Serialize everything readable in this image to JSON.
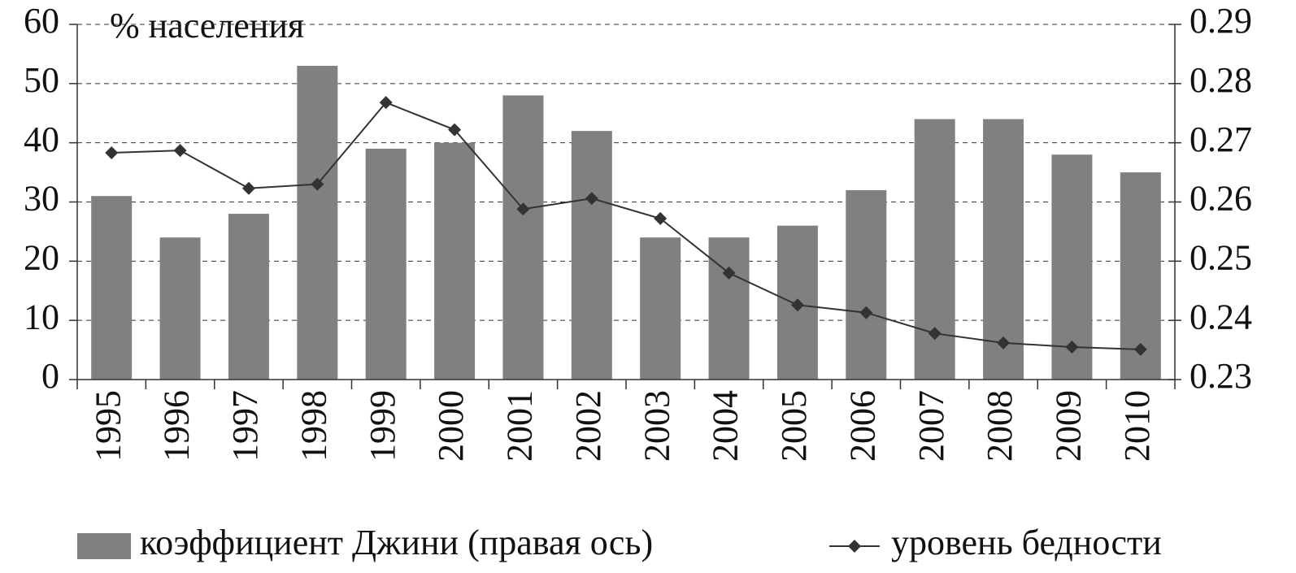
{
  "chart_data": {
    "type": "bar-line",
    "annotation": "% населения",
    "categories": [
      "1995",
      "1996",
      "1997",
      "1998",
      "1999",
      "2000",
      "2001",
      "2002",
      "2003",
      "2004",
      "2005",
      "2006",
      "2007",
      "2008",
      "2009",
      "2010"
    ],
    "series": [
      {
        "name": "коэффициент Джини (правая ось)",
        "type": "bar",
        "axis": "y2",
        "color": "#808080",
        "values": [
          0.261,
          0.254,
          0.258,
          0.283,
          0.269,
          0.27,
          0.278,
          0.272,
          0.254,
          0.254,
          0.256,
          0.262,
          0.274,
          0.274,
          0.268,
          0.265
        ]
      },
      {
        "name": "уровень бедности",
        "type": "line",
        "color": "#333333",
        "values": [
          38.3,
          38.7,
          32.3,
          33.0,
          46.8,
          42.2,
          28.8,
          30.6,
          27.2,
          18.0,
          12.6,
          11.3,
          7.8,
          6.2,
          5.5,
          5.1
        ]
      }
    ],
    "ylim": [
      0,
      60
    ],
    "yticks": [
      0,
      10,
      20,
      30,
      40,
      50,
      60
    ],
    "y2lim": [
      0.23,
      0.29
    ],
    "y2ticks": [
      0.23,
      0.24,
      0.25,
      0.26,
      0.27,
      0.28,
      0.29
    ],
    "grid": true
  }
}
